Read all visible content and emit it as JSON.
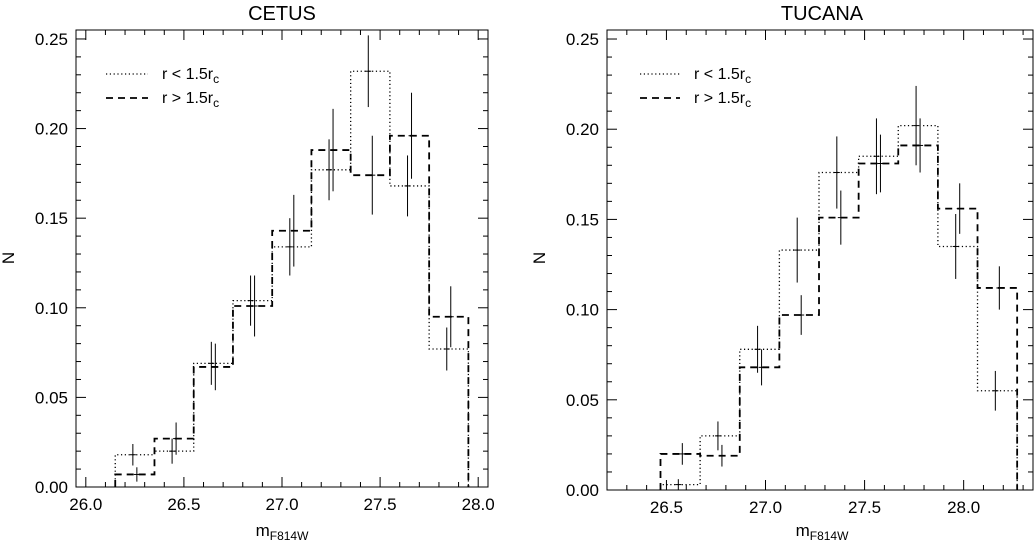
{
  "chart_data": [
    {
      "type": "histogram",
      "title": "CETUS",
      "xlabel": "m",
      "xlabel_sub": "F814W",
      "ylabel": "N",
      "xlim": [
        25.95,
        28.05
      ],
      "ylim": [
        0,
        0.255
      ],
      "xticks": [
        "26.0",
        "26.5",
        "27.0",
        "27.5",
        "28.0"
      ],
      "yticks": [
        "0.00",
        "0.05",
        "0.10",
        "0.15",
        "0.20",
        "0.25"
      ],
      "legend_position": "top-left",
      "bin_edges": [
        26.15,
        26.35,
        26.55,
        26.75,
        26.95,
        27.15,
        27.35,
        27.55,
        27.75,
        27.95
      ],
      "series": [
        {
          "name": "r < 1.5r",
          "name_sub": "c",
          "style": "dotted",
          "values": [
            0.018,
            0.02,
            0.069,
            0.104,
            0.134,
            0.177,
            0.232,
            0.168,
            0.077
          ],
          "errors": [
            0.006,
            0.007,
            0.012,
            0.014,
            0.016,
            0.017,
            0.02,
            0.017,
            0.012
          ]
        },
        {
          "name": "r > 1.5r",
          "name_sub": "c",
          "style": "dashed",
          "values": [
            0.007,
            0.027,
            0.067,
            0.101,
            0.143,
            0.188,
            0.174,
            0.196,
            0.095
          ],
          "errors": [
            0.004,
            0.009,
            0.013,
            0.017,
            0.02,
            0.023,
            0.022,
            0.024,
            0.017
          ]
        }
      ]
    },
    {
      "type": "histogram",
      "title": "TUCANA",
      "xlabel": "m",
      "xlabel_sub": "F814W",
      "ylabel": "N",
      "xlim": [
        26.2,
        28.35
      ],
      "ylim": [
        0,
        0.255
      ],
      "xticks": [
        "26.5",
        "27.0",
        "27.5",
        "28.0"
      ],
      "yticks": [
        "0.00",
        "0.05",
        "0.10",
        "0.15",
        "0.20",
        "0.25"
      ],
      "legend_position": "top-left",
      "bin_edges": [
        26.47,
        26.67,
        26.87,
        27.07,
        27.27,
        27.47,
        27.67,
        27.87,
        28.07,
        28.27
      ],
      "series": [
        {
          "name": "r < 1.5r",
          "name_sub": "c",
          "style": "dotted",
          "values": [
            0.003,
            0.03,
            0.078,
            0.133,
            0.176,
            0.185,
            0.202,
            0.135,
            0.055
          ],
          "errors": [
            0.003,
            0.008,
            0.013,
            0.018,
            0.02,
            0.021,
            0.022,
            0.018,
            0.011
          ]
        },
        {
          "name": "r > 1.5r",
          "name_sub": "c",
          "style": "dashed",
          "values": [
            0.02,
            0.019,
            0.068,
            0.097,
            0.151,
            0.181,
            0.191,
            0.156,
            0.112
          ],
          "errors": [
            0.006,
            0.006,
            0.01,
            0.011,
            0.015,
            0.016,
            0.015,
            0.014,
            0.012
          ]
        }
      ]
    }
  ]
}
